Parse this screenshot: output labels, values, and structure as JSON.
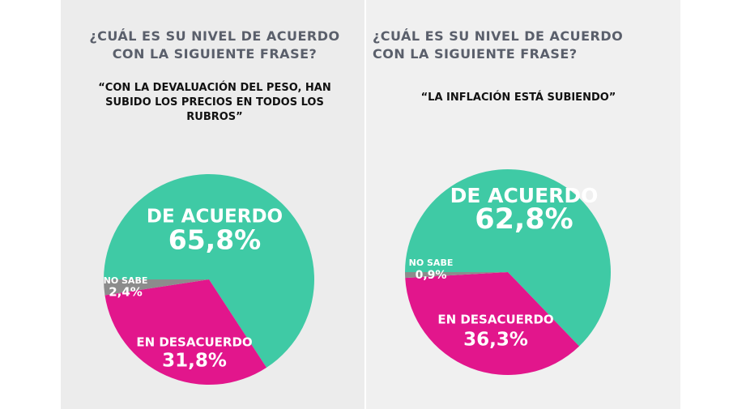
{
  "chart_data": [
    {
      "type": "pie",
      "title": "¿CUÁL ES SU NIVEL DE ACUERDO CON LA SIGUIENTE FRASE?",
      "subtitle": "“CON LA DEVALUACIÓN DEL PESO, HAN SUBIDO LOS PRECIOS EN TODOS LOS RUBROS”",
      "categories": [
        "DE ACUERDO",
        "EN DESACUERDO",
        "NO SABE"
      ],
      "values": [
        65.8,
        31.8,
        2.4
      ],
      "value_labels": [
        "65,8%",
        "31,8%",
        "2,4%"
      ],
      "colors": [
        "#3fcaa5",
        "#e2168c",
        "#8c8c8c"
      ]
    },
    {
      "type": "pie",
      "title": "¿CUÁL ES SU NIVEL DE ACUERDO CON LA SIGUIENTE FRASE?",
      "subtitle": "“LA INFLACIÓN ESTÁ SUBIENDO”",
      "categories": [
        "DE ACUERDO",
        "EN DESACUERDO",
        "NO SABE"
      ],
      "values": [
        62.8,
        36.3,
        0.9
      ],
      "value_labels": [
        "62,8%",
        "36,3%",
        "0,9%"
      ],
      "colors": [
        "#3fcaa5",
        "#e2168c",
        "#8c8c8c"
      ]
    }
  ]
}
